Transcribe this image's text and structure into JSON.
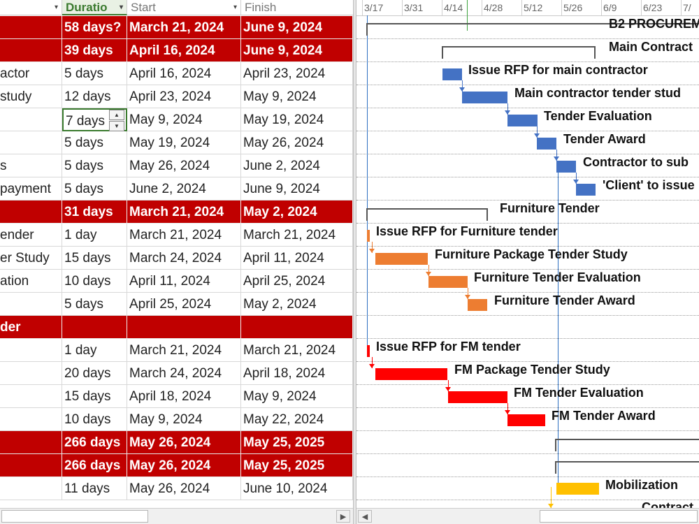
{
  "columns": {
    "name_arrow": "▾",
    "duration": {
      "label": "Duratio",
      "arrow": "▾"
    },
    "start": {
      "label": "Start",
      "arrow": "▾"
    },
    "finish": {
      "label": "Finish"
    }
  },
  "spinner": {
    "up": "▲",
    "down": "▼"
  },
  "rows": [
    {
      "name": "",
      "duration": "58 days?",
      "start": "March 21, 2024",
      "finish": "June 9, 2024",
      "summary": true
    },
    {
      "name": "",
      "duration": "39 days",
      "start": "April 16, 2024",
      "finish": "June 9, 2024",
      "summary": true
    },
    {
      "name": "actor",
      "duration": "5 days",
      "start": "April 16, 2024",
      "finish": "April 23, 2024"
    },
    {
      "name": "study",
      "duration": "12 days",
      "start": "April 23, 2024",
      "finish": "May 9, 2024"
    },
    {
      "name": "",
      "duration": "7 days",
      "start": "May 9, 2024",
      "finish": "May 19, 2024",
      "selected": true
    },
    {
      "name": "",
      "duration": "5 days",
      "start": "May 19, 2024",
      "finish": "May 26, 2024"
    },
    {
      "name": "s",
      "duration": "5 days",
      "start": "May 26, 2024",
      "finish": "June 2, 2024"
    },
    {
      "name": "payment",
      "duration": "5 days",
      "start": "June 2, 2024",
      "finish": "June 9, 2024"
    },
    {
      "name": "",
      "duration": "31 days",
      "start": "March 21, 2024",
      "finish": "May 2, 2024",
      "summary": true
    },
    {
      "name": "ender",
      "duration": "1 day",
      "start": "March 21, 2024",
      "finish": "March 21, 2024"
    },
    {
      "name": "er Study",
      "duration": "15 days",
      "start": "March 24, 2024",
      "finish": "April 11, 2024"
    },
    {
      "name": "ation",
      "duration": "10 days",
      "start": "April 11, 2024",
      "finish": "April 25, 2024"
    },
    {
      "name": "",
      "duration": "5 days",
      "start": "April 25, 2024",
      "finish": "May 2, 2024"
    },
    {
      "name": "der",
      "duration": "",
      "start": "",
      "finish": "",
      "summary": true
    },
    {
      "name": "",
      "duration": "1 day",
      "start": "March 21, 2024",
      "finish": "March 21, 2024"
    },
    {
      "name": "",
      "duration": "20 days",
      "start": "March 24, 2024",
      "finish": "April 18, 2024"
    },
    {
      "name": "",
      "duration": "15 days",
      "start": "April 18, 2024",
      "finish": "May 9, 2024"
    },
    {
      "name": "",
      "duration": "10 days",
      "start": "May 9, 2024",
      "finish": "May 22, 2024"
    },
    {
      "name": "",
      "duration": "266 days",
      "start": "May 26, 2024",
      "finish": "May 25, 2025",
      "summary": true
    },
    {
      "name": "",
      "duration": "266 days",
      "start": "May 26, 2024",
      "finish": "May 25, 2025",
      "summary": true
    },
    {
      "name": "",
      "duration": "11 days",
      "start": "May 26, 2024",
      "finish": "June 10, 2024"
    }
  ],
  "timescale": [
    "3/17",
    "3/31",
    "4/14",
    "4/28",
    "5/12",
    "5/26",
    "6/9",
    "6/23",
    "7/"
  ],
  "gantt_labels": [
    "B2 PROCUREM",
    "Main Contract",
    "Issue RFP for main contractor",
    "Main contractor tender stud",
    "Tender Evaluation",
    "Tender Award",
    "Contractor to sub",
    "'Client' to issue",
    "Furniture Tender",
    "Issue RFP for Furniture tender",
    "Furniture Package Tender Study",
    "Furniture Tender Evaluation",
    "Furniture Tender Award",
    "Issue RFP for FM tender",
    "FM Package Tender Study",
    "FM Tender Evaluation",
    "FM Tender Award",
    "Mobilization",
    "Contract"
  ],
  "colors": {
    "summary_fill": "#c00000",
    "main_bars": "#4472c4",
    "furniture_bars": "#ed7d31",
    "fm_bars": "#ff0000",
    "mobilization_bar": "#ffc000",
    "selection": "#3a7a2e"
  },
  "scroll": {
    "left_arrow": "◀",
    "right_arrow": "▶"
  }
}
